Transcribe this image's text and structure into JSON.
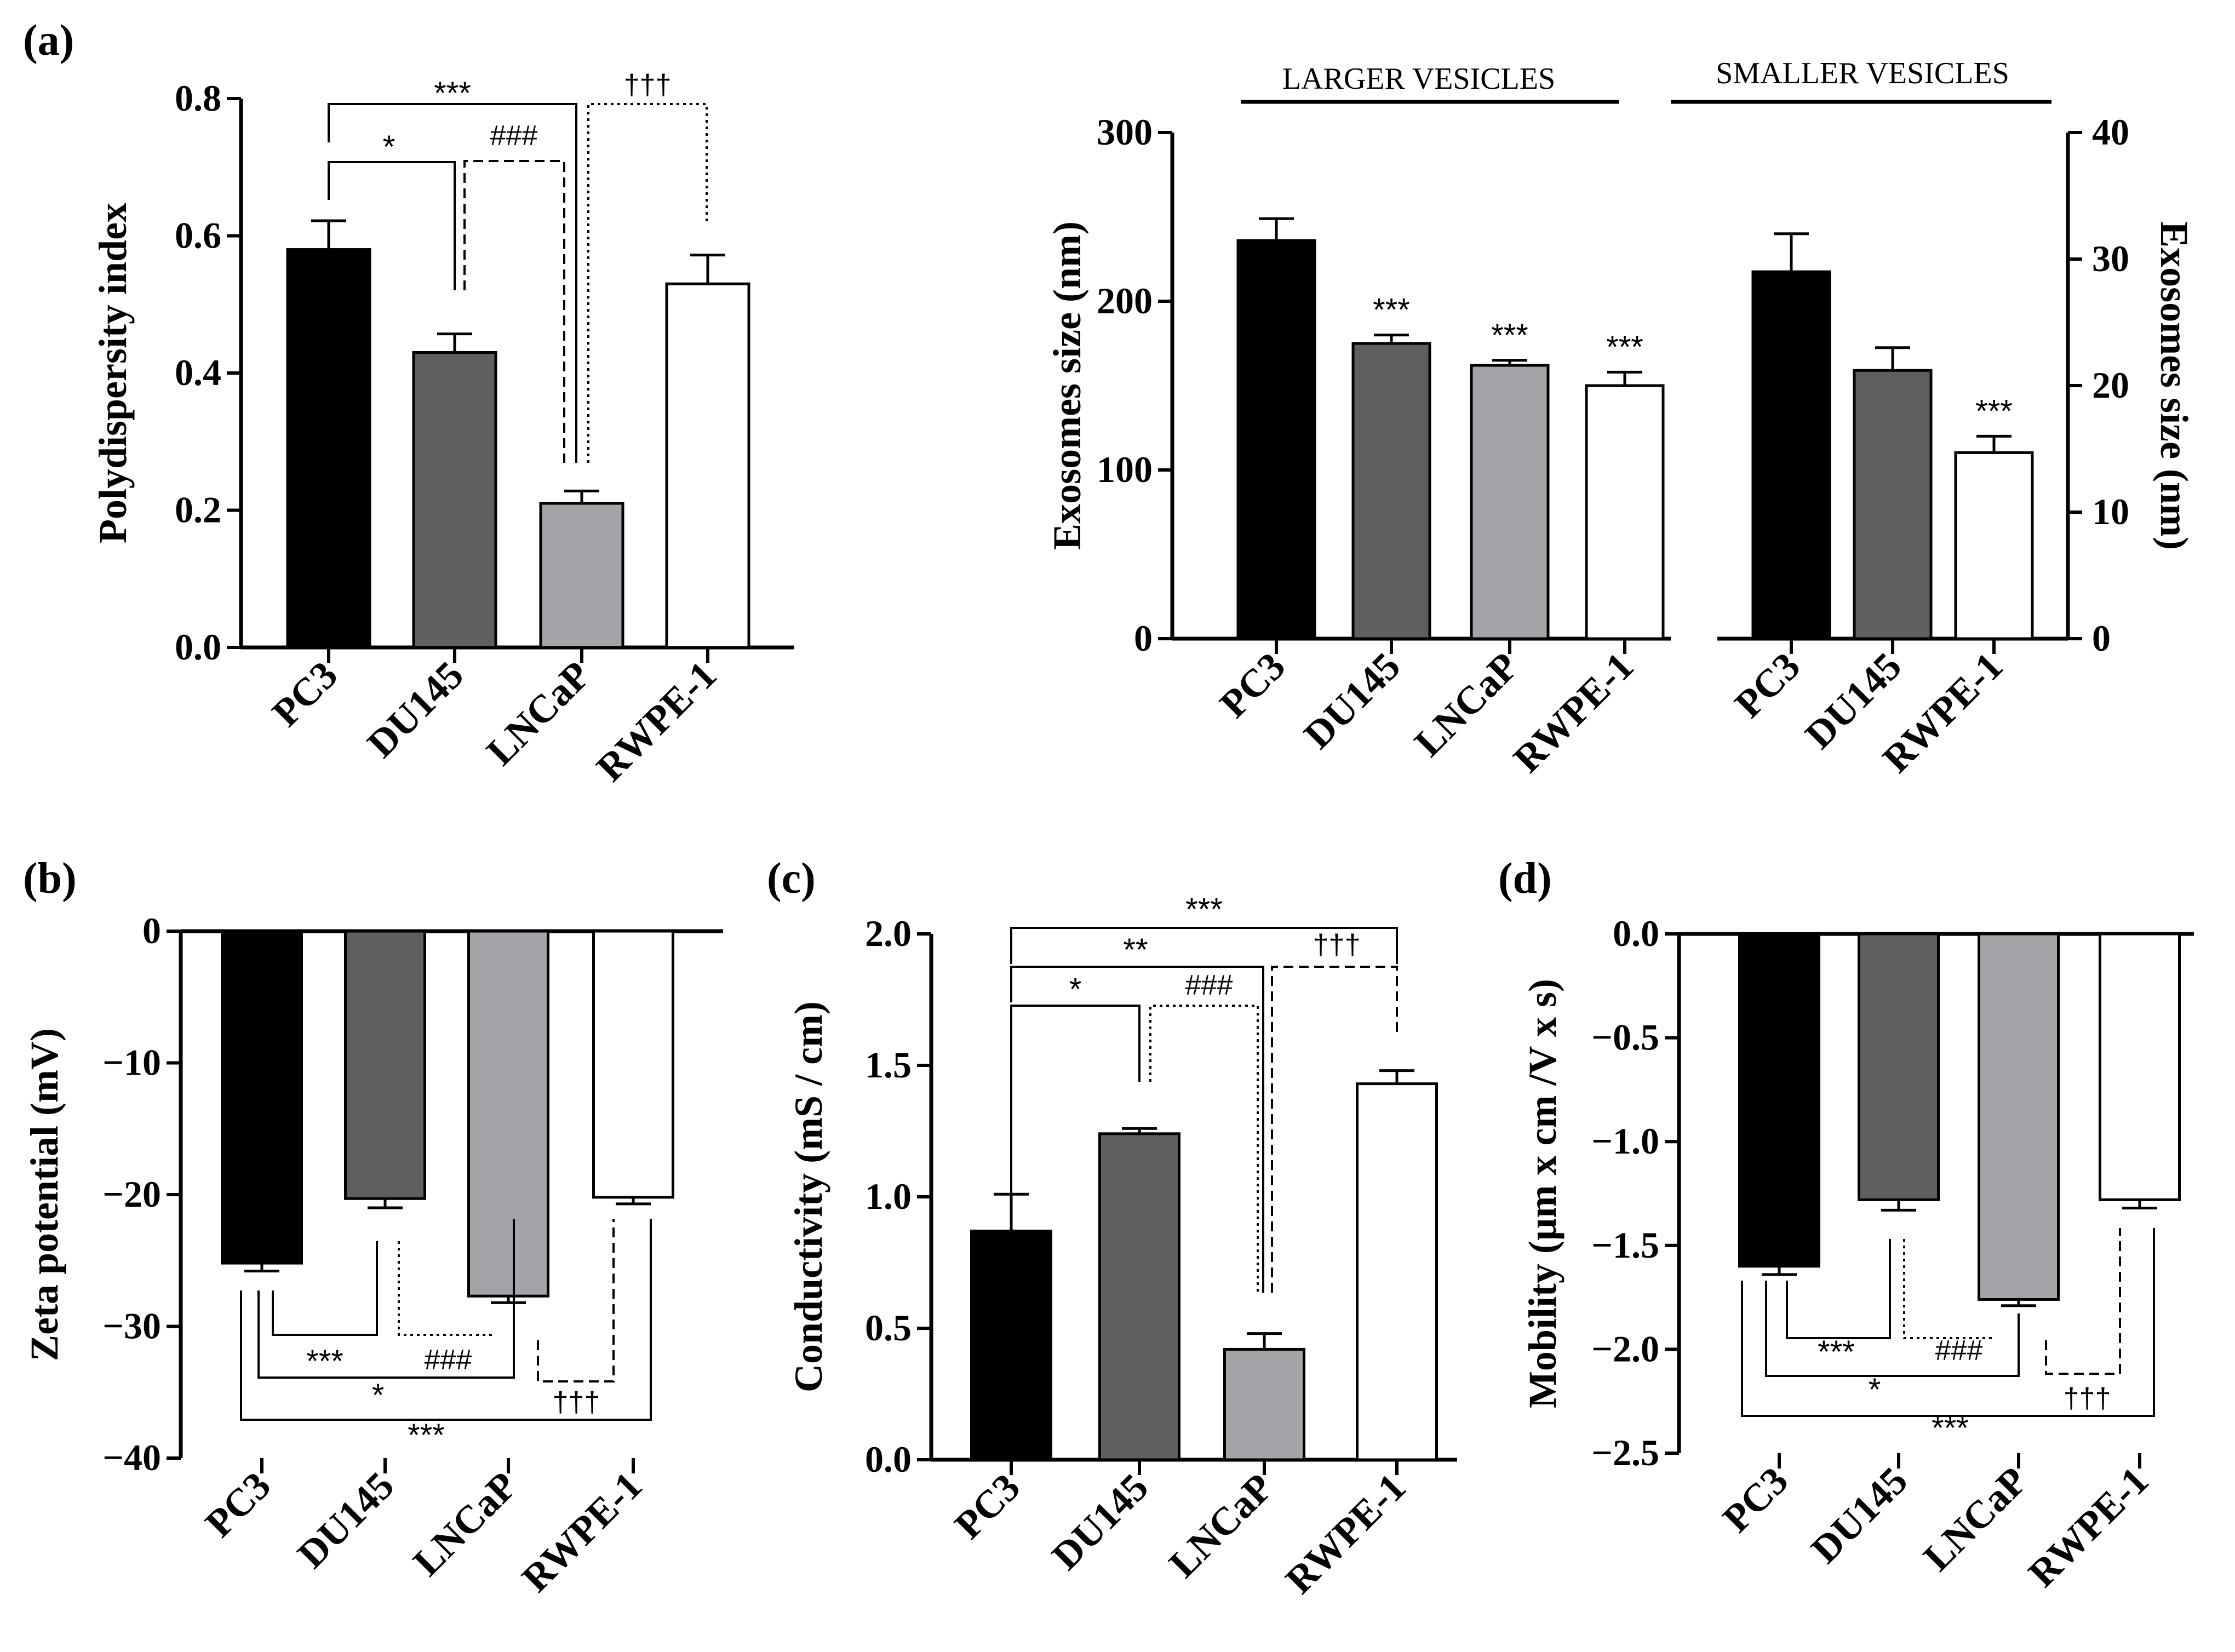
{
  "figure_labels": {
    "a": "(a)",
    "b": "(b)",
    "c": "(c)",
    "d": "(d)"
  },
  "colors": {
    "PC3": "#000000",
    "DU145": "#5f5f5f",
    "LNCaP": "#a4a4a8",
    "RWPE-1": "#ffffff"
  },
  "chart_data": [
    {
      "id": "pdi",
      "panel": "(a)",
      "type": "bar",
      "ylabel": "Polydispersity index",
      "ylim": [
        0,
        0.8
      ],
      "yticks": [
        0.0,
        0.2,
        0.4,
        0.6,
        0.8
      ],
      "tick_labels": [
        "0.0",
        "0.2",
        "0.4",
        "0.6",
        "0.8"
      ],
      "categories": [
        "PC3",
        "DU145",
        "LNCaP",
        "RWPE-1"
      ],
      "values": [
        0.58,
        0.43,
        0.21,
        0.53
      ],
      "errors": [
        0.042,
        0.027,
        0.018,
        0.042
      ],
      "significance": [
        {
          "label": "*",
          "from": "PC3",
          "to": "DU145",
          "style": "solid"
        },
        {
          "label": "***",
          "from": "PC3",
          "to": "LNCaP",
          "style": "solid"
        },
        {
          "label": "###",
          "from": "DU145",
          "to": "LNCaP",
          "style": "dashed"
        },
        {
          "label": "†††",
          "from": "LNCaP",
          "to": "RWPE-1",
          "style": "dotted"
        }
      ]
    },
    {
      "id": "size",
      "panel": "(a)",
      "type": "bar",
      "ylabel": "Exosomes size (nm)",
      "ylabel_right": "Exosomes size (nm)",
      "groups": [
        {
          "name": "LARGER VESICLES",
          "axis": "left",
          "ylim": [
            0,
            300
          ],
          "yticks": [
            0,
            100,
            200,
            300
          ],
          "tick_labels": [
            "0",
            "100",
            "200",
            "300"
          ],
          "categories": [
            "PC3",
            "DU145",
            "LNCaP",
            "RWPE-1"
          ],
          "values": [
            236,
            175,
            162,
            150
          ],
          "errors": [
            13,
            5,
            3,
            8
          ],
          "stars": [
            "",
            "***",
            "***",
            "***"
          ]
        },
        {
          "name": "SMALLER VESICLES",
          "axis": "right",
          "ylim": [
            0,
            40
          ],
          "yticks": [
            0,
            10,
            20,
            30,
            40
          ],
          "tick_labels": [
            "0",
            "10",
            "20",
            "30",
            "40"
          ],
          "categories": [
            "PC3",
            "DU145",
            "RWPE-1"
          ],
          "values": [
            29,
            21.2,
            14.7
          ],
          "errors": [
            3,
            1.8,
            1.3
          ],
          "stars": [
            "",
            "",
            "***"
          ]
        }
      ]
    },
    {
      "id": "zeta",
      "panel": "(b)",
      "type": "bar",
      "ylabel": "Zeta potential (mV)",
      "ylim": [
        -40,
        0
      ],
      "yticks": [
        0,
        -10,
        -20,
        -30,
        -40
      ],
      "tick_labels": [
        "0",
        "−10",
        "−20",
        "−30",
        "−40"
      ],
      "categories": [
        "PC3",
        "DU145",
        "LNCaP",
        "RWPE-1"
      ],
      "values": [
        -25.2,
        -20.3,
        -27.7,
        -20.2
      ],
      "errors": [
        0.6,
        0.7,
        0.5,
        0.5
      ],
      "significance": [
        {
          "label": "***",
          "from": "PC3",
          "to": "DU145",
          "style": "solid"
        },
        {
          "label": "###",
          "from": "DU145",
          "to": "LNCaP",
          "style": "dotted"
        },
        {
          "label": "*",
          "from": "PC3",
          "to": "LNCaP",
          "style": "solid"
        },
        {
          "label": "†††",
          "from": "LNCaP",
          "to": "RWPE-1",
          "style": "dashed"
        },
        {
          "label": "***",
          "from": "PC3",
          "to": "RWPE-1",
          "style": "solid"
        }
      ]
    },
    {
      "id": "cond",
      "panel": "(c)",
      "type": "bar",
      "ylabel": "Conductivity (mS / cm)",
      "ylim": [
        0,
        2.0
      ],
      "yticks": [
        0.0,
        0.5,
        1.0,
        1.5,
        2.0
      ],
      "tick_labels": [
        "0.0",
        "0.5",
        "1.0",
        "1.5",
        "2.0"
      ],
      "categories": [
        "PC3",
        "DU145",
        "LNCaP",
        "RWPE-1"
      ],
      "values": [
        0.87,
        1.24,
        0.42,
        1.43
      ],
      "errors": [
        0.14,
        0.02,
        0.06,
        0.05
      ],
      "significance": [
        {
          "label": "*",
          "from": "PC3",
          "to": "DU145",
          "style": "solid"
        },
        {
          "label": "###",
          "from": "DU145",
          "to": "LNCaP",
          "style": "dotted"
        },
        {
          "label": "**",
          "from": "PC3",
          "to": "LNCaP",
          "style": "solid"
        },
        {
          "label": "†††",
          "from": "LNCaP",
          "to": "RWPE-1",
          "style": "dashed"
        },
        {
          "label": "***",
          "from": "PC3",
          "to": "RWPE-1",
          "style": "solid"
        }
      ]
    },
    {
      "id": "mob",
      "panel": "(d)",
      "type": "bar",
      "ylabel": "Mobility (µm x cm /V x s)",
      "ylim": [
        -2.5,
        0
      ],
      "yticks": [
        0.0,
        -0.5,
        -1.0,
        -1.5,
        -2.0,
        -2.5
      ],
      "tick_labels": [
        "0.0",
        "−0.5",
        "−1.0",
        "−1.5",
        "−2.0",
        "−2.5"
      ],
      "categories": [
        "PC3",
        "DU145",
        "LNCaP",
        "RWPE-1"
      ],
      "values": [
        -1.6,
        -1.28,
        -1.76,
        -1.28
      ],
      "errors": [
        0.04,
        0.05,
        0.03,
        0.04
      ],
      "significance": [
        {
          "label": "***",
          "from": "PC3",
          "to": "DU145",
          "style": "solid"
        },
        {
          "label": "###",
          "from": "DU145",
          "to": "LNCaP",
          "style": "dotted"
        },
        {
          "label": "*",
          "from": "PC3",
          "to": "LNCaP",
          "style": "solid"
        },
        {
          "label": "†††",
          "from": "LNCaP",
          "to": "RWPE-1",
          "style": "dashed"
        },
        {
          "label": "***",
          "from": "PC3",
          "to": "RWPE-1",
          "style": "solid"
        }
      ]
    }
  ]
}
